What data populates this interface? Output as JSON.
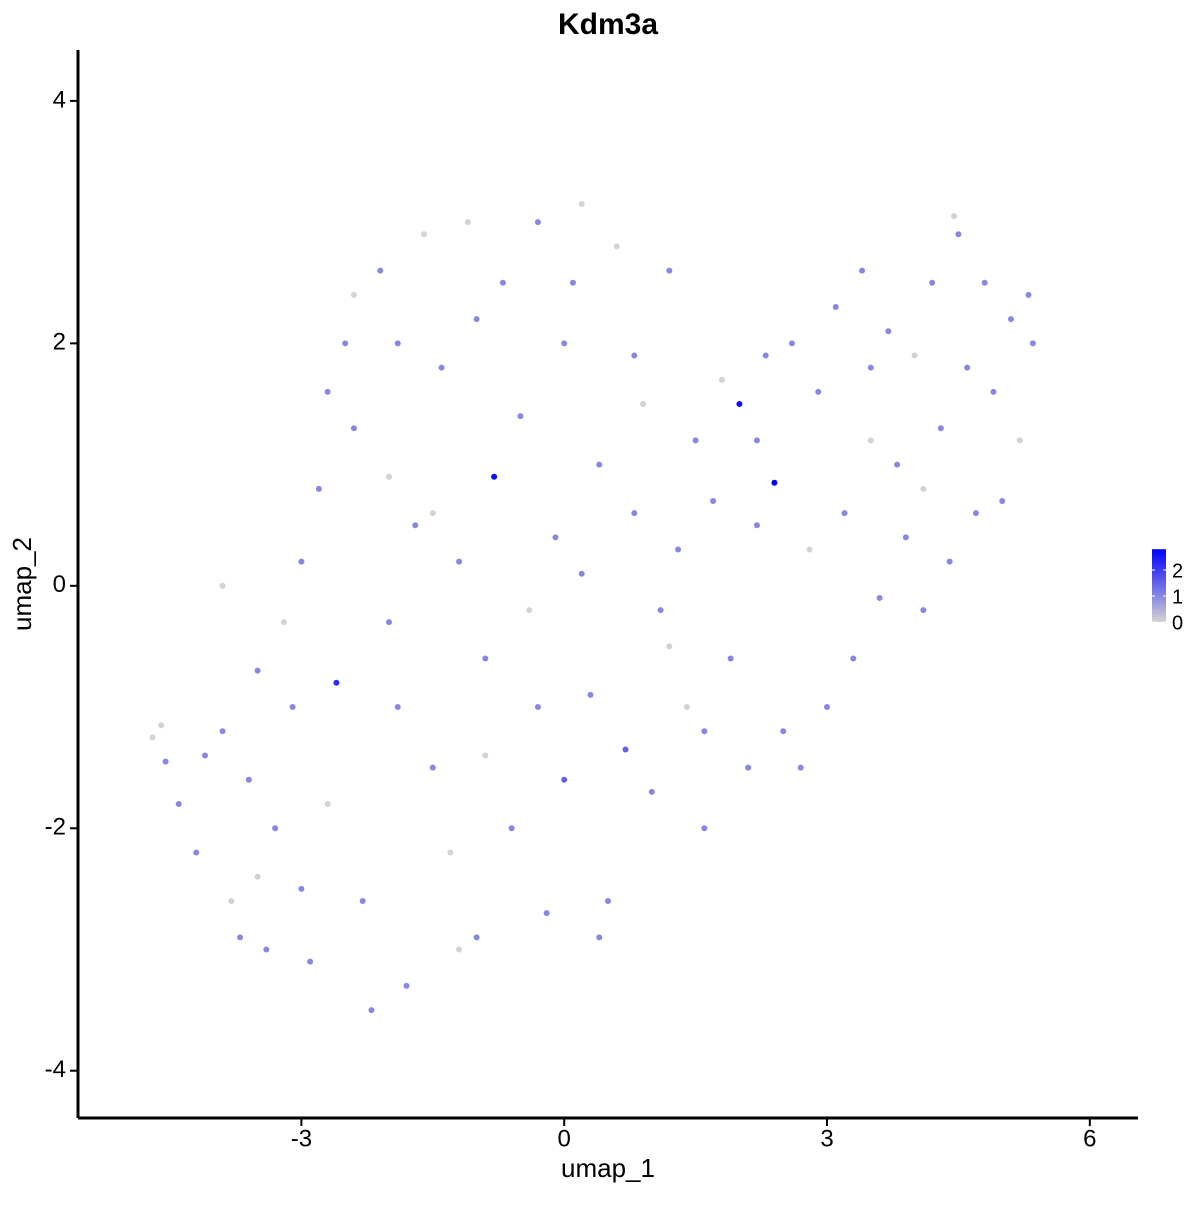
{
  "chart_data": {
    "type": "scatter",
    "title": "Kdm3a",
    "x_label": "umap_1",
    "y_label": "umap_2",
    "xlim": [
      -5.55,
      6.55
    ],
    "xticks": [
      -3,
      0,
      3,
      6
    ],
    "ylim": [
      -4.39,
      4.42
    ],
    "yticks": [
      -4,
      -2,
      0,
      2,
      4
    ],
    "color_scale": {
      "low": "#d3d3d3",
      "high": "#0000ff",
      "lim": [
        0,
        2.8
      ],
      "ticks": [
        0,
        1,
        2
      ]
    },
    "x": [
      -4.7,
      -4.6,
      -4.55,
      -4.4,
      -4.2,
      -4.1,
      -3.9,
      -3.8,
      -3.7,
      -3.6,
      -3.5,
      -3.4,
      -3.3,
      -3.2,
      -3.1,
      -3.0,
      -2.9,
      -2.8,
      -2.7,
      -2.6,
      -2.5,
      -2.4,
      -2.3,
      -2.2,
      -2.1,
      -2.0,
      -1.9,
      -1.8,
      -1.7,
      -1.6,
      -1.5,
      -1.4,
      -1.3,
      -1.2,
      -1.1,
      -1.0,
      -0.9,
      -0.8,
      -0.7,
      -0.6,
      -0.5,
      -0.4,
      -0.3,
      -0.2,
      -0.1,
      0,
      0.1,
      0.2,
      0.3,
      0.4,
      0.5,
      0.6,
      0.7,
      0.8,
      0.9,
      1.0,
      1.1,
      1.2,
      1.3,
      1.4,
      1.5,
      1.6,
      1.7,
      1.8,
      1.9,
      2.0,
      2.1,
      2.2,
      2.3,
      2.4,
      2.5,
      2.6,
      2.7,
      2.8,
      2.9,
      3.0,
      3.1,
      3.2,
      3.3,
      3.4,
      3.5,
      3.6,
      3.7,
      3.8,
      3.9,
      4.0,
      4.1,
      4.2,
      4.3,
      4.4,
      4.45,
      4.5,
      4.6,
      4.7,
      4.8,
      4.9,
      5.0,
      5.1,
      5.2,
      5.3,
      5.35,
      -3.9,
      -2.7,
      -1.9,
      -0.9,
      0.2,
      1.2,
      -3.0,
      -1.2,
      0.4,
      -2.4,
      -1.0,
      0.8,
      -2.0,
      -0.3,
      1.6,
      3.5,
      4.1,
      2.2,
      -3.5,
      -1.5,
      0.0
    ],
    "y": [
      -1.25,
      -1.15,
      -1.45,
      -1.8,
      -2.2,
      -1.4,
      -1.2,
      -2.6,
      -2.9,
      -1.6,
      -2.4,
      -3.0,
      -2.0,
      -0.3,
      -1.0,
      0.2,
      -3.1,
      0.8,
      1.6,
      -0.8,
      2.0,
      1.3,
      -2.6,
      -3.5,
      2.6,
      -0.3,
      2.0,
      -3.3,
      0.5,
      2.9,
      -1.5,
      1.8,
      -2.2,
      0.2,
      3.0,
      -2.9,
      -0.6,
      0.9,
      2.5,
      -2.0,
      1.4,
      -0.2,
      3.0,
      -2.7,
      0.4,
      -1.6,
      2.5,
      3.15,
      -0.9,
      1.0,
      -2.6,
      2.8,
      -1.35,
      0.6,
      1.5,
      -1.7,
      -0.2,
      2.6,
      0.3,
      -1.0,
      1.2,
      -2.0,
      0.7,
      1.7,
      -0.6,
      1.5,
      -1.5,
      0.5,
      1.9,
      0.85,
      -1.2,
      2.0,
      -1.5,
      0.3,
      1.6,
      -1.0,
      2.3,
      0.6,
      -0.6,
      2.6,
      1.2,
      -0.1,
      2.1,
      1.0,
      0.4,
      1.9,
      -0.2,
      2.5,
      1.3,
      0.2,
      3.05,
      2.9,
      1.8,
      0.6,
      2.5,
      1.6,
      0.7,
      2.2,
      1.2,
      2.4,
      2.0,
      0.0,
      -1.8,
      -1.0,
      -1.4,
      0.1,
      -0.5,
      -2.5,
      -3.0,
      -2.9,
      2.4,
      2.2,
      1.9,
      0.9,
      -1.0,
      -1.2,
      1.8,
      0.8,
      1.2,
      -0.7,
      0.6,
      2.0
    ],
    "color_values": [
      0,
      0,
      1,
      1,
      1,
      1,
      1,
      0,
      1,
      1,
      0,
      1,
      1,
      0,
      1,
      1,
      1,
      1,
      1,
      2.2,
      1,
      1,
      1,
      1,
      1,
      1,
      1,
      1,
      1,
      0,
      1,
      1,
      0,
      1,
      0,
      1,
      1,
      2.6,
      1,
      1,
      1,
      0,
      1,
      1,
      1,
      1.5,
      1,
      0,
      1,
      1,
      1,
      0,
      1.5,
      1,
      0,
      1,
      1,
      1,
      1,
      0,
      1,
      1,
      1,
      0,
      1,
      2.6,
      1,
      1,
      1,
      2.8,
      1,
      1,
      1,
      0,
      1,
      1,
      1,
      1,
      1,
      1,
      0,
      1,
      1,
      1,
      1,
      0,
      1,
      1,
      1,
      1,
      0,
      1,
      1,
      1,
      1,
      1,
      1,
      1,
      0,
      1,
      1,
      0,
      0,
      1,
      0,
      1,
      0,
      1,
      0,
      1,
      0,
      1,
      1,
      0,
      1,
      1,
      1,
      0,
      1,
      1,
      0,
      1
    ]
  }
}
